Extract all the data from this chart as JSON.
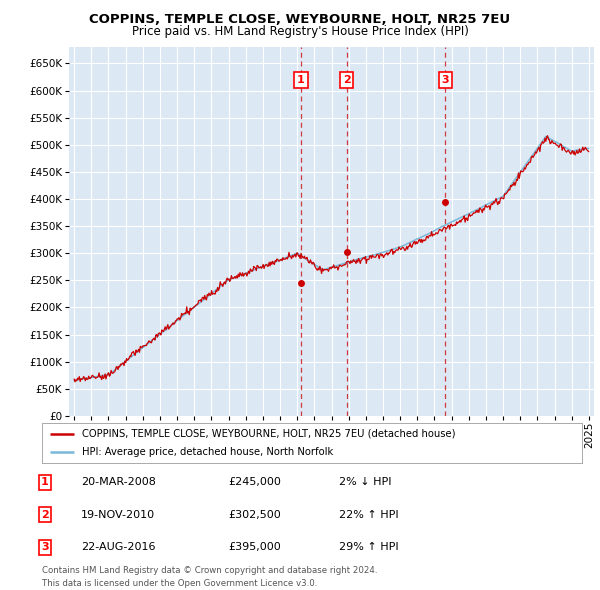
{
  "title": "COPPINS, TEMPLE CLOSE, WEYBOURNE, HOLT, NR25 7EU",
  "subtitle": "Price paid vs. HM Land Registry's House Price Index (HPI)",
  "legend_line1": "COPPINS, TEMPLE CLOSE, WEYBOURNE, HOLT, NR25 7EU (detached house)",
  "legend_line2": "HPI: Average price, detached house, North Norfolk",
  "transactions": [
    {
      "num": 1,
      "date": "20-MAR-2008",
      "price": 245000,
      "pct": "2%",
      "dir": "↓"
    },
    {
      "num": 2,
      "date": "19-NOV-2010",
      "price": 302500,
      "pct": "22%",
      "dir": "↑"
    },
    {
      "num": 3,
      "date": "22-AUG-2016",
      "price": 395000,
      "pct": "29%",
      "dir": "↑"
    }
  ],
  "transaction_years": [
    2008.22,
    2010.89,
    2016.64
  ],
  "transaction_prices": [
    245000,
    302500,
    395000
  ],
  "footnote1": "Contains HM Land Registry data © Crown copyright and database right 2024.",
  "footnote2": "This data is licensed under the Open Government Licence v3.0.",
  "hpi_color": "#7ab8d9",
  "sale_color": "#cc0000",
  "vline_color": "#cc0000",
  "plot_bg": "#dce9f5",
  "ylim": [
    0,
    680000
  ],
  "yticks": [
    0,
    50000,
    100000,
    150000,
    200000,
    250000,
    300000,
    350000,
    400000,
    450000,
    500000,
    550000,
    600000,
    650000
  ],
  "xlim_start": 1994.7,
  "xlim_end": 2025.3,
  "marker_y": 620000
}
